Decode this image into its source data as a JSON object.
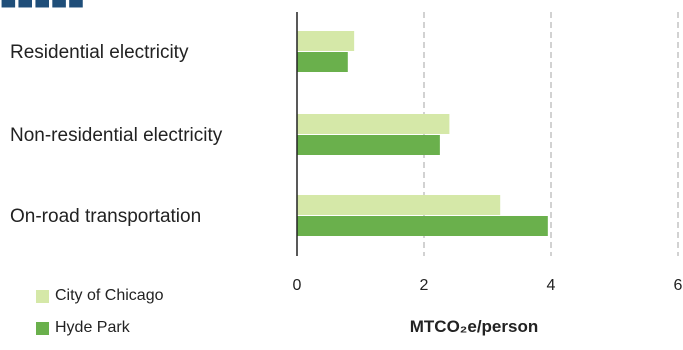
{
  "chart_data": {
    "type": "bar",
    "orientation": "horizontal",
    "title": "",
    "xlabel": "MTCO₂e/person",
    "ylabel": "",
    "categories": [
      "Residential electricity",
      "Non-residential electricity",
      "On-road transportation"
    ],
    "series": [
      {
        "name": "City of Chicago",
        "color": "#d5e8a8",
        "values": [
          0.9,
          2.4,
          3.2
        ]
      },
      {
        "name": "Hyde Park",
        "color": "#6ab04c",
        "values": [
          0.8,
          2.25,
          3.95
        ]
      }
    ],
    "xlim": [
      0,
      6
    ],
    "xticks": [
      0,
      2,
      4,
      6
    ],
    "gridlines": "dashed vertical",
    "legend_position": "bottom-left"
  }
}
